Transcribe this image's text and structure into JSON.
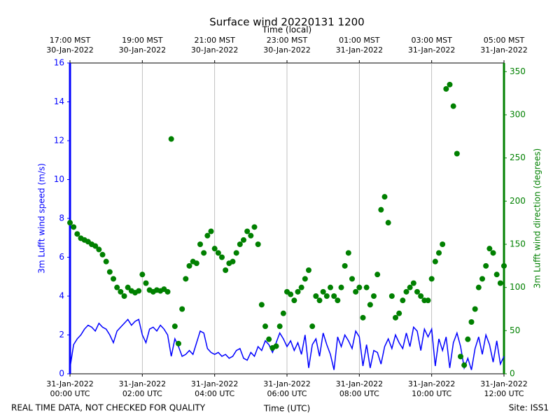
{
  "chart_data": {
    "type": "combo",
    "title": "Surface wind 20220131 1200",
    "xlabel": "Time (UTC)",
    "x2label": "Time (local)",
    "ylabel": "3m Lufft wind speed (m/s)",
    "y2label": "3m Lufft wind direction (degrees)",
    "footer_left": "REAL TIME DATA, NOT CHECKED FOR QUALITY",
    "footer_right": "Site: ISS1",
    "xlim": [
      0,
      12
    ],
    "xticks": [
      {
        "value": 0,
        "label": [
          "31-Jan-2022",
          "00:00 UTC"
        ]
      },
      {
        "value": 2,
        "label": [
          "31-Jan-2022",
          "02:00 UTC"
        ]
      },
      {
        "value": 4,
        "label": [
          "31-Jan-2022",
          "04:00 UTC"
        ]
      },
      {
        "value": 6,
        "label": [
          "31-Jan-2022",
          "06:00 UTC"
        ]
      },
      {
        "value": 8,
        "label": [
          "31-Jan-2022",
          "08:00 UTC"
        ]
      },
      {
        "value": 10,
        "label": [
          "31-Jan-2022",
          "10:00 UTC"
        ]
      },
      {
        "value": 12,
        "label": [
          "31-Jan-2022",
          "12:00 UTC"
        ]
      }
    ],
    "x2ticks": [
      {
        "value": 0,
        "label": [
          "17:00 MST",
          "30-Jan-2022"
        ]
      },
      {
        "value": 2,
        "label": [
          "19:00 MST",
          "30-Jan-2022"
        ]
      },
      {
        "value": 4,
        "label": [
          "21:00 MST",
          "30-Jan-2022"
        ]
      },
      {
        "value": 6,
        "label": [
          "23:00 MST",
          "30-Jan-2022"
        ]
      },
      {
        "value": 8,
        "label": [
          "01:00 MST",
          "31-Jan-2022"
        ]
      },
      {
        "value": 10,
        "label": [
          "03:00 MST",
          "31-Jan-2022"
        ]
      },
      {
        "value": 12,
        "label": [
          "05:00 MST",
          "31-Jan-2022"
        ]
      }
    ],
    "ylim": [
      0,
      16
    ],
    "yticks": [
      0,
      2,
      4,
      6,
      8,
      10,
      12,
      14,
      16
    ],
    "y2lim": [
      0,
      360
    ],
    "y2ticks": [
      0,
      50,
      100,
      150,
      200,
      250,
      300,
      350
    ],
    "grid": "x",
    "x": [
      0,
      0.1,
      0.2,
      0.3,
      0.4,
      0.5,
      0.6,
      0.7,
      0.8,
      0.9,
      1,
      1.1,
      1.2,
      1.3,
      1.4,
      1.5,
      1.6,
      1.7,
      1.8,
      1.9,
      2,
      2.1,
      2.2,
      2.3,
      2.4,
      2.5,
      2.6,
      2.7,
      2.8,
      2.9,
      3,
      3.1,
      3.2,
      3.3,
      3.4,
      3.5,
      3.6,
      3.7,
      3.8,
      3.9,
      4,
      4.1,
      4.2,
      4.3,
      4.4,
      4.5,
      4.6,
      4.7,
      4.8,
      4.9,
      5,
      5.1,
      5.2,
      5.3,
      5.4,
      5.5,
      5.6,
      5.7,
      5.8,
      5.9,
      6,
      6.1,
      6.2,
      6.3,
      6.4,
      6.5,
      6.6,
      6.7,
      6.8,
      6.9,
      7,
      7.1,
      7.2,
      7.3,
      7.4,
      7.5,
      7.6,
      7.7,
      7.8,
      7.9,
      8,
      8.1,
      8.2,
      8.3,
      8.4,
      8.5,
      8.6,
      8.7,
      8.8,
      8.9,
      9,
      9.1,
      9.2,
      9.3,
      9.4,
      9.5,
      9.6,
      9.7,
      9.8,
      9.9,
      10,
      10.1,
      10.2,
      10.3,
      10.4,
      10.5,
      10.6,
      10.7,
      10.8,
      10.9,
      11,
      11.1,
      11.2,
      11.3,
      11.4,
      11.5,
      11.6,
      11.7,
      11.8,
      11.9,
      12
    ],
    "series": [
      {
        "name": "3m Lufft wind speed",
        "kind": "line",
        "axis": "y",
        "color": "#0000ff",
        "values": [
          0.3,
          1.5,
          1.8,
          2.0,
          2.3,
          2.5,
          2.4,
          2.2,
          2.6,
          2.4,
          2.3,
          2.0,
          1.6,
          2.2,
          2.4,
          2.6,
          2.8,
          2.5,
          2.7,
          2.8,
          2.0,
          1.6,
          2.3,
          2.4,
          2.2,
          2.5,
          2.3,
          2.0,
          0.9,
          1.8,
          1.4,
          0.9,
          1.0,
          1.2,
          1.0,
          1.6,
          2.2,
          2.1,
          1.3,
          1.1,
          1.0,
          1.1,
          0.9,
          1.0,
          0.8,
          0.9,
          1.2,
          1.3,
          0.8,
          0.7,
          1.1,
          0.9,
          1.4,
          1.2,
          1.7,
          1.5,
          1.1,
          1.6,
          2.1,
          1.8,
          1.4,
          1.7,
          1.2,
          1.6,
          1.0,
          2.0,
          0.3,
          1.5,
          1.8,
          0.9,
          2.1,
          1.5,
          1.0,
          0.2,
          1.9,
          1.4,
          2.0,
          1.7,
          1.3,
          2.2,
          1.9,
          0.4,
          1.5,
          0.3,
          1.2,
          1.1,
          0.5,
          1.4,
          1.8,
          1.3,
          2.0,
          1.6,
          1.3,
          2.1,
          1.4,
          2.4,
          2.2,
          1.2,
          2.3,
          1.9,
          2.3,
          0.4,
          1.8,
          1.2,
          1.9,
          0.3,
          1.6,
          2.1,
          1.4,
          0.3,
          0.8,
          0.2,
          1.3,
          1.9,
          1.0,
          2.0,
          1.5,
          0.6,
          1.7,
          0.5,
          0.9
        ]
      },
      {
        "name": "3m Lufft wind direction",
        "kind": "scatter",
        "axis": "y2",
        "color": "#008000",
        "values": [
          175,
          170,
          162,
          157,
          155,
          153,
          150,
          148,
          144,
          138,
          130,
          118,
          110,
          100,
          95,
          90,
          100,
          96,
          94,
          96,
          115,
          105,
          97,
          95,
          97,
          96,
          98,
          95,
          272,
          55,
          35,
          75,
          110,
          125,
          130,
          128,
          150,
          140,
          160,
          165,
          145,
          140,
          135,
          120,
          128,
          130,
          140,
          150,
          155,
          165,
          160,
          170,
          150,
          80,
          55,
          40,
          30,
          32,
          55,
          70,
          95,
          92,
          85,
          95,
          100,
          110,
          120,
          55,
          90,
          85,
          95,
          90,
          100,
          90,
          85,
          100,
          125,
          140,
          110,
          95,
          100,
          65,
          100,
          80,
          90,
          115,
          190,
          205,
          175,
          90,
          65,
          70,
          85,
          95,
          100,
          105,
          95,
          90,
          85,
          85,
          110,
          130,
          140,
          150,
          330,
          335,
          310,
          255,
          20,
          10,
          40,
          60,
          75,
          100,
          110,
          125,
          145,
          140,
          115,
          105,
          125
        ]
      }
    ]
  }
}
